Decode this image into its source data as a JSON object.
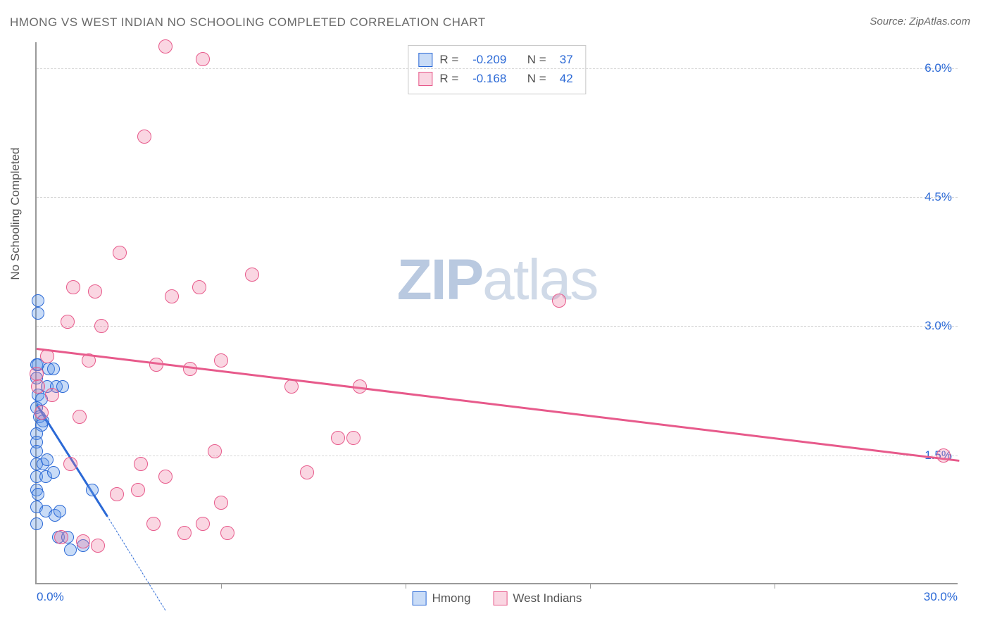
{
  "title": "HMONG VS WEST INDIAN NO SCHOOLING COMPLETED CORRELATION CHART",
  "source_label": "Source:",
  "source_name": "ZipAtlas.com",
  "y_axis_label": "No Schooling Completed",
  "watermark_bold": "ZIP",
  "watermark_thin": "atlas",
  "x_axis": {
    "min": 0.0,
    "max": 30.0,
    "tick_labels": [
      "0.0%",
      "30.0%"
    ],
    "minor_ticks": [
      6,
      12,
      18,
      24
    ]
  },
  "y_axis": {
    "min": 0.0,
    "max": 6.3,
    "gridlines": [
      1.5,
      3.0,
      4.5,
      6.0
    ],
    "tick_labels": [
      "1.5%",
      "3.0%",
      "4.5%",
      "6.0%"
    ]
  },
  "stats": [
    {
      "r_label": "R =",
      "r": "-0.209",
      "n_label": "N =",
      "n": "37"
    },
    {
      "r_label": "R =",
      "r": "-0.168",
      "n_label": "N =",
      "n": "42"
    }
  ],
  "series": [
    {
      "name": "Hmong",
      "color_fill": "rgba(99,155,233,0.35)",
      "color_stroke": "#2b69d6",
      "marker_radius": 9,
      "trend": {
        "x1": 0,
        "y1": 2.1,
        "x2": 2.3,
        "y2": 0.8,
        "color": "#2b69d6",
        "width": 3,
        "dash_extend": {
          "x2": 4.2,
          "y2": -0.3
        }
      },
      "points": [
        [
          0.05,
          3.3
        ],
        [
          0.05,
          3.15
        ],
        [
          0.0,
          2.55
        ],
        [
          0.05,
          2.55
        ],
        [
          0.0,
          2.4
        ],
        [
          0.05,
          2.2
        ],
        [
          0.4,
          2.5
        ],
        [
          0.55,
          2.5
        ],
        [
          0.35,
          2.3
        ],
        [
          0.65,
          2.3
        ],
        [
          0.85,
          2.3
        ],
        [
          0.15,
          2.15
        ],
        [
          0.0,
          2.05
        ],
        [
          0.1,
          1.95
        ],
        [
          0.2,
          1.9
        ],
        [
          0.15,
          1.85
        ],
        [
          0.0,
          1.75
        ],
        [
          0.0,
          1.65
        ],
        [
          0.0,
          1.55
        ],
        [
          0.0,
          1.4
        ],
        [
          0.2,
          1.4
        ],
        [
          0.35,
          1.45
        ],
        [
          0.0,
          1.25
        ],
        [
          0.3,
          1.25
        ],
        [
          0.55,
          1.3
        ],
        [
          0.0,
          1.1
        ],
        [
          0.05,
          1.05
        ],
        [
          1.8,
          1.1
        ],
        [
          0.0,
          0.9
        ],
        [
          0.3,
          0.85
        ],
        [
          0.6,
          0.8
        ],
        [
          0.75,
          0.85
        ],
        [
          0.0,
          0.7
        ],
        [
          0.7,
          0.55
        ],
        [
          1.0,
          0.55
        ],
        [
          1.1,
          0.4
        ],
        [
          1.5,
          0.45
        ]
      ]
    },
    {
      "name": "West Indians",
      "color_fill": "rgba(239,120,160,0.30)",
      "color_stroke": "#e75a8b",
      "marker_radius": 10,
      "trend": {
        "x1": 0,
        "y1": 2.75,
        "x2": 30.0,
        "y2": 1.45,
        "color": "#e75a8b",
        "width": 2.5
      },
      "points": [
        [
          4.2,
          6.25
        ],
        [
          5.4,
          6.1
        ],
        [
          3.5,
          5.2
        ],
        [
          2.7,
          3.85
        ],
        [
          1.2,
          3.45
        ],
        [
          1.9,
          3.4
        ],
        [
          4.4,
          3.35
        ],
        [
          5.3,
          3.45
        ],
        [
          7.0,
          3.6
        ],
        [
          17.0,
          3.3
        ],
        [
          1.0,
          3.05
        ],
        [
          2.1,
          3.0
        ],
        [
          0.35,
          2.65
        ],
        [
          1.7,
          2.6
        ],
        [
          3.9,
          2.55
        ],
        [
          5.0,
          2.5
        ],
        [
          6.0,
          2.6
        ],
        [
          0.0,
          2.45
        ],
        [
          0.05,
          2.3
        ],
        [
          0.5,
          2.2
        ],
        [
          8.3,
          2.3
        ],
        [
          10.5,
          2.3
        ],
        [
          0.15,
          2.0
        ],
        [
          1.4,
          1.95
        ],
        [
          9.8,
          1.7
        ],
        [
          10.3,
          1.7
        ],
        [
          5.8,
          1.55
        ],
        [
          1.1,
          1.4
        ],
        [
          3.4,
          1.4
        ],
        [
          4.2,
          1.25
        ],
        [
          8.8,
          1.3
        ],
        [
          29.5,
          1.5
        ],
        [
          2.6,
          1.05
        ],
        [
          3.3,
          1.1
        ],
        [
          6.0,
          0.95
        ],
        [
          3.8,
          0.7
        ],
        [
          5.4,
          0.7
        ],
        [
          4.8,
          0.6
        ],
        [
          6.2,
          0.6
        ],
        [
          0.8,
          0.55
        ],
        [
          1.5,
          0.5
        ],
        [
          2.0,
          0.45
        ]
      ]
    }
  ],
  "legend": {
    "items": [
      {
        "label": "Hmong",
        "fill": "rgba(99,155,233,0.35)",
        "stroke": "#2b69d6"
      },
      {
        "label": "West Indians",
        "fill": "rgba(239,120,160,0.30)",
        "stroke": "#e75a8b"
      }
    ]
  }
}
